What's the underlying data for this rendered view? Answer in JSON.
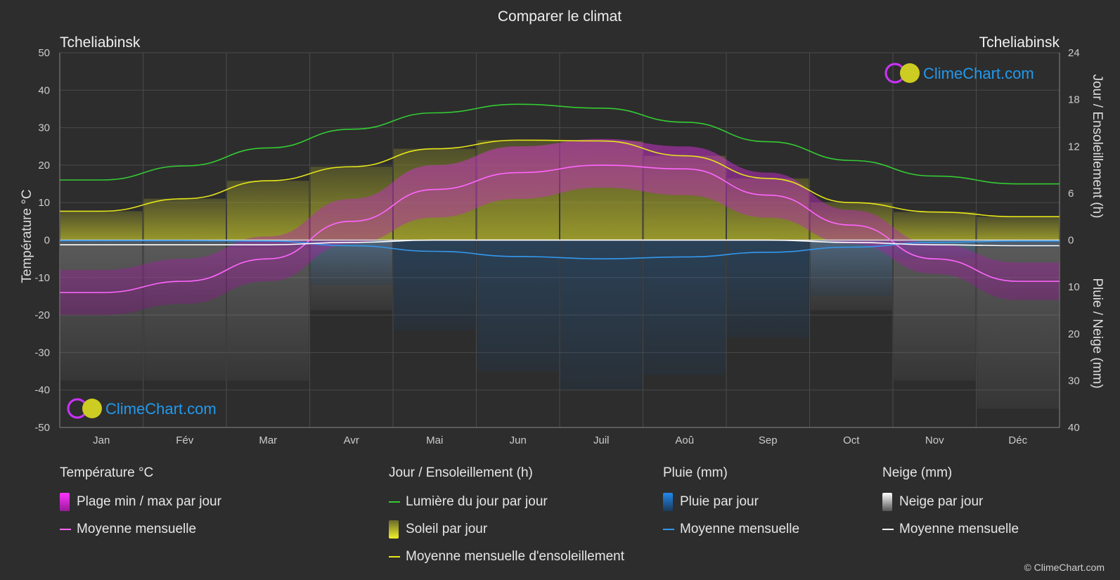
{
  "title": "Comparer le climat",
  "location_left": "Tcheliabinsk",
  "location_right": "Tcheliabinsk",
  "logo_text": "ClimeChart.com",
  "copyright": "© ClimeChart.com",
  "colors": {
    "background": "#2d2d2d",
    "grid": "#4a4a4a",
    "daylight": "#33cc33",
    "sunshine_mean": "#e6e61a",
    "sunshine_fill": "#8f8f2a",
    "temp_range": "#d81bd8",
    "temp_mean": "#ff66ff",
    "rain": "#2277dd",
    "rain_mean": "#3399ee",
    "snow": "#aaaaaa",
    "snow_mean": "#ffffff",
    "logo_text": "#2299ee"
  },
  "chart_data": {
    "type": "line",
    "months": [
      "Jan",
      "Fév",
      "Mar",
      "Avr",
      "Mai",
      "Jun",
      "Juil",
      "Aoû",
      "Sep",
      "Oct",
      "Nov",
      "Déc"
    ],
    "y_left": {
      "label": "Température °C",
      "ticks": [
        50,
        40,
        30,
        20,
        10,
        0,
        -10,
        -20,
        -30,
        -40,
        -50
      ],
      "range": [
        -50,
        50
      ]
    },
    "y_right_top": {
      "label": "Jour / Ensoleillement (h)",
      "ticks": [
        24,
        18,
        12,
        6,
        0
      ],
      "range": [
        0,
        24
      ]
    },
    "y_right_bottom": {
      "label": "Pluie / Neige (mm)",
      "ticks": [
        10,
        20,
        30,
        40
      ],
      "range": [
        0,
        40
      ]
    },
    "grid": true,
    "series": [
      {
        "name": "Lumière du jour par jour",
        "axis": "hours",
        "values": [
          7.7,
          9.5,
          11.8,
          14.2,
          16.3,
          17.4,
          16.9,
          15.1,
          12.6,
          10.2,
          8.2,
          7.2
        ]
      },
      {
        "name": "Moyenne mensuelle d'ensoleillement",
        "axis": "hours",
        "values": [
          3.7,
          5.3,
          7.6,
          9.4,
          11.7,
          12.8,
          12.7,
          10.8,
          7.9,
          4.8,
          3.6,
          3.0
        ]
      },
      {
        "name": "Moyenne mensuelle",
        "kind": "temp_mean",
        "axis": "celsius",
        "values": [
          -14,
          -11,
          -5,
          5,
          13.5,
          18,
          20,
          19,
          12,
          4,
          -5,
          -11
        ]
      },
      {
        "name": "Plage min / max par jour",
        "kind": "temp_range",
        "axis": "celsius",
        "max": [
          -8,
          -5,
          1,
          11,
          20,
          25,
          27,
          25,
          18,
          8,
          -1,
          -6
        ],
        "min": [
          -20,
          -17,
          -11,
          -1,
          6,
          11,
          14,
          12,
          6,
          -1,
          -9,
          -16
        ]
      },
      {
        "name": "Moyenne mensuelle",
        "kind": "rain_mean",
        "axis": "mm",
        "values": [
          0.1,
          0.1,
          0.2,
          1.2,
          2.4,
          3.5,
          4.0,
          3.6,
          2.6,
          1.5,
          0.5,
          0.2
        ]
      },
      {
        "name": "Moyenne mensuelle",
        "kind": "snow_mean",
        "axis": "mm",
        "values": [
          1.0,
          1.0,
          1.0,
          0.5,
          0.0,
          0.0,
          0.0,
          0.0,
          0.0,
          0.5,
          1.0,
          1.2
        ]
      }
    ]
  },
  "legend": {
    "temperature": {
      "title": "Température °C",
      "items": [
        "Plage min / max par jour",
        "Moyenne mensuelle"
      ]
    },
    "sun": {
      "title": "Jour / Ensoleillement (h)",
      "items": [
        "Lumière du jour par jour",
        "Soleil par jour",
        "Moyenne mensuelle d'ensoleillement"
      ]
    },
    "rain": {
      "title": "Pluie (mm)",
      "items": [
        "Pluie par jour",
        "Moyenne mensuelle"
      ]
    },
    "snow": {
      "title": "Neige (mm)",
      "items": [
        "Neige par jour",
        "Moyenne mensuelle"
      ]
    }
  }
}
